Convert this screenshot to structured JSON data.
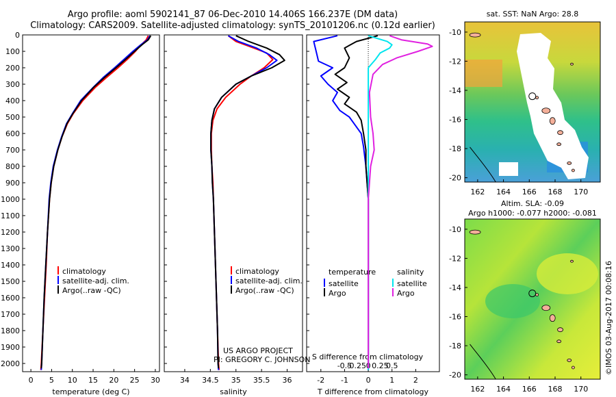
{
  "title": {
    "line1": "Argo profile: aoml 5902141_87 06-Dec-2010 14.406S 166.237E (DM data)",
    "line2": "Climatology: CARS2009. Satellite-adjusted climatology: synTS_20101206.nc (0.12d earlier)"
  },
  "stamp": "©IMOS 03-Aug-2017 00:08:16",
  "project": {
    "line1": "US ARGO PROJECT",
    "line2": "PI: GREGORY C. JOHNSON"
  },
  "colors": {
    "clim": "#ff0000",
    "sat": "#0000ff",
    "argo": "#000000",
    "sat_s": "#00e5ee",
    "argo_s": "#e020e0"
  },
  "chart_data": [
    {
      "type": "line",
      "title": "",
      "xlabel": "temperature (deg C)",
      "ylabel": "",
      "xlim": [
        -2,
        31
      ],
      "ylim": [
        2050,
        0
      ],
      "xticks": [
        0,
        5,
        10,
        15,
        20,
        25,
        30
      ],
      "yticks": [
        0,
        100,
        200,
        300,
        400,
        500,
        600,
        700,
        800,
        900,
        1000,
        1100,
        1200,
        1300,
        1400,
        1500,
        1600,
        1700,
        1800,
        1900,
        2000
      ],
      "legend": [
        "climatology",
        "satellite-adj. clim.",
        "Argo(..raw -QC)"
      ],
      "series": [
        {
          "name": "climatology",
          "color": "#ff0000",
          "points": [
            [
              28.3,
              5
            ],
            [
              27.8,
              30
            ],
            [
              26.6,
              60
            ],
            [
              25.2,
              100
            ],
            [
              23.2,
              150
            ],
            [
              21,
              200
            ],
            [
              18.2,
              260
            ],
            [
              15.5,
              320
            ],
            [
              12.5,
              400
            ],
            [
              10.2,
              480
            ],
            [
              8.8,
              540
            ],
            [
              7.5,
              620
            ],
            [
              6.5,
              700
            ],
            [
              5.5,
              800
            ],
            [
              4.9,
              900
            ],
            [
              4.5,
              1000
            ],
            [
              4,
              1200
            ],
            [
              3.7,
              1400
            ],
            [
              3.3,
              1600
            ],
            [
              2.9,
              1800
            ],
            [
              2.5,
              2000
            ],
            [
              2.4,
              2040
            ]
          ]
        },
        {
          "name": "satellite-adj. clim.",
          "color": "#0000ff",
          "points": [
            [
              28.7,
              5
            ],
            [
              28.1,
              30
            ],
            [
              26.5,
              60
            ],
            [
              24.6,
              100
            ],
            [
              22.4,
              150
            ],
            [
              20.2,
              200
            ],
            [
              17.4,
              260
            ],
            [
              15,
              320
            ],
            [
              12,
              400
            ],
            [
              10,
              480
            ],
            [
              8.6,
              540
            ],
            [
              7.4,
              620
            ],
            [
              6.4,
              700
            ],
            [
              5.4,
              800
            ],
            [
              4.8,
              900
            ],
            [
              4.4,
              1000
            ],
            [
              4,
              1200
            ],
            [
              3.6,
              1400
            ],
            [
              3.2,
              1600
            ],
            [
              2.9,
              1800
            ],
            [
              2.6,
              2000
            ],
            [
              2.5,
              2040
            ]
          ]
        },
        {
          "name": "Argo(..raw -QC)",
          "color": "#000000",
          "points": [
            [
              28.9,
              5
            ],
            [
              28.3,
              30
            ],
            [
              26.8,
              60
            ],
            [
              25,
              100
            ],
            [
              22.8,
              150
            ],
            [
              20.5,
              200
            ],
            [
              17.7,
              260
            ],
            [
              15.1,
              320
            ],
            [
              12.2,
              400
            ],
            [
              10.1,
              480
            ],
            [
              8.7,
              540
            ],
            [
              7.5,
              620
            ],
            [
              6.5,
              700
            ],
            [
              5.5,
              800
            ],
            [
              4.9,
              900
            ],
            [
              4.5,
              1000
            ],
            [
              4,
              1200
            ],
            [
              3.6,
              1400
            ],
            [
              3.2,
              1600
            ],
            [
              2.9,
              1800
            ],
            [
              2.6,
              2000
            ],
            [
              2.5,
              2030
            ]
          ]
        }
      ]
    },
    {
      "type": "line",
      "title": "",
      "xlabel": "salinity",
      "ylabel": "",
      "xlim": [
        33.6,
        36.3
      ],
      "ylim": [
        2050,
        0
      ],
      "xticks": [
        34,
        34.5,
        35,
        35.5,
        36
      ],
      "legend": [
        "climatology",
        "satellite-adj. clim.",
        "Argo(..raw -QC)"
      ],
      "series": [
        {
          "name": "climatology",
          "color": "#ff0000",
          "points": [
            [
              34.85,
              5
            ],
            [
              35,
              40
            ],
            [
              35.35,
              80
            ],
            [
              35.6,
              110
            ],
            [
              35.72,
              150
            ],
            [
              35.55,
              200
            ],
            [
              35.3,
              250
            ],
            [
              35.08,
              300
            ],
            [
              34.8,
              380
            ],
            [
              34.63,
              450
            ],
            [
              34.55,
              520
            ],
            [
              34.52,
              600
            ],
            [
              34.52,
              700
            ],
            [
              34.53,
              800
            ],
            [
              34.55,
              900
            ],
            [
              34.56,
              1000
            ],
            [
              34.58,
              1200
            ],
            [
              34.6,
              1400
            ],
            [
              34.62,
              1600
            ],
            [
              34.64,
              1800
            ],
            [
              34.66,
              2000
            ],
            [
              34.67,
              2040
            ]
          ]
        },
        {
          "name": "satellite-adj. clim.",
          "color": "#0000ff",
          "points": [
            [
              34.85,
              5
            ],
            [
              35.05,
              40
            ],
            [
              35.4,
              80
            ],
            [
              35.65,
              120
            ],
            [
              35.8,
              155
            ],
            [
              35.6,
              200
            ],
            [
              35.3,
              250
            ],
            [
              35.0,
              300
            ],
            [
              34.72,
              380
            ],
            [
              34.58,
              450
            ],
            [
              34.53,
              520
            ],
            [
              34.51,
              600
            ],
            [
              34.51,
              700
            ],
            [
              34.53,
              800
            ],
            [
              34.54,
              900
            ],
            [
              34.56,
              1000
            ],
            [
              34.58,
              1200
            ],
            [
              34.6,
              1400
            ],
            [
              34.62,
              1600
            ],
            [
              34.64,
              1800
            ],
            [
              34.65,
              2000
            ],
            [
              34.66,
              2040
            ]
          ]
        },
        {
          "name": "Argo(..raw -QC)",
          "color": "#000000",
          "points": [
            [
              35.0,
              5
            ],
            [
              35.25,
              40
            ],
            [
              35.6,
              80
            ],
            [
              35.85,
              120
            ],
            [
              35.95,
              155
            ],
            [
              35.7,
              200
            ],
            [
              35.3,
              250
            ],
            [
              35.0,
              300
            ],
            [
              34.72,
              380
            ],
            [
              34.58,
              450
            ],
            [
              34.53,
              520
            ],
            [
              34.51,
              600
            ],
            [
              34.51,
              700
            ],
            [
              34.53,
              800
            ],
            [
              34.54,
              900
            ],
            [
              34.56,
              1000
            ],
            [
              34.58,
              1200
            ],
            [
              34.6,
              1400
            ],
            [
              34.62,
              1600
            ],
            [
              34.64,
              1800
            ],
            [
              34.65,
              2000
            ],
            [
              34.66,
              2030
            ]
          ]
        }
      ]
    },
    {
      "type": "line",
      "title": "",
      "xlabel": "T difference from climatology",
      "xlabel2": "S difference from climatology",
      "xlim": [
        -2.6,
        3.0
      ],
      "ylim": [
        2050,
        0
      ],
      "xticks": [
        -2,
        -1,
        0,
        1,
        2
      ],
      "xticks2": {
        "values": [
          -1.0,
          -0.5,
          0,
          0.5,
          1.0
        ],
        "labels": [
          "-0.5",
          "-0.25",
          "0",
          "0.25",
          "0.5"
        ]
      },
      "legend_titles": [
        "temperature",
        "salinity"
      ],
      "legend": [
        "satellite",
        "Argo",
        "satellite",
        "Argo"
      ],
      "series": [
        {
          "name": "temperature satellite",
          "color": "#0000ff",
          "points": [
            [
              -1.3,
              5
            ],
            [
              -2.3,
              40
            ],
            [
              -2.2,
              100
            ],
            [
              -2.1,
              160
            ],
            [
              -1.5,
              200
            ],
            [
              -2.0,
              250
            ],
            [
              -1.7,
              300
            ],
            [
              -1.3,
              350
            ],
            [
              -1.5,
              400
            ],
            [
              -1.2,
              460
            ],
            [
              -0.8,
              500
            ],
            [
              -0.6,
              540
            ],
            [
              -0.3,
              600
            ],
            [
              -0.2,
              680
            ],
            [
              -0.1,
              800
            ],
            [
              0,
              1000
            ],
            [
              0,
              1500
            ],
            [
              0,
              2040
            ]
          ]
        },
        {
          "name": "temperature Argo",
          "color": "#000000",
          "points": [
            [
              0.4,
              5
            ],
            [
              -0.5,
              40
            ],
            [
              -1.0,
              80
            ],
            [
              -0.8,
              140
            ],
            [
              -1.0,
              200
            ],
            [
              -1.4,
              240
            ],
            [
              -0.9,
              290
            ],
            [
              -1.3,
              330
            ],
            [
              -0.8,
              380
            ],
            [
              -1.0,
              420
            ],
            [
              -0.5,
              470
            ],
            [
              -0.3,
              520
            ],
            [
              -0.2,
              600
            ],
            [
              -0.1,
              700
            ],
            [
              -0.1,
              800
            ],
            [
              0,
              1000
            ],
            [
              0,
              1500
            ],
            [
              0,
              2030
            ]
          ]
        },
        {
          "name": "salinity satellite",
          "color": "#00e5ee",
          "points": [
            [
              0,
              5
            ],
            [
              0.8,
              40
            ],
            [
              1.0,
              60
            ],
            [
              0.9,
              80
            ],
            [
              0.5,
              110
            ],
            [
              0.3,
              150
            ],
            [
              0,
              200
            ],
            [
              0,
              400
            ],
            [
              0,
              700
            ],
            [
              0,
              1000
            ],
            [
              0,
              1500
            ],
            [
              0,
              2040
            ]
          ]
        },
        {
          "name": "salinity Argo",
          "color": "#e020e0",
          "points": [
            [
              0.9,
              5
            ],
            [
              1.4,
              30
            ],
            [
              2.5,
              55
            ],
            [
              2.7,
              70
            ],
            [
              2.1,
              100
            ],
            [
              1.2,
              140
            ],
            [
              0.6,
              180
            ],
            [
              0.2,
              240
            ],
            [
              0.05,
              350
            ],
            [
              0.1,
              500
            ],
            [
              0.2,
              600
            ],
            [
              0.25,
              700
            ],
            [
              0.1,
              800
            ],
            [
              0,
              1000
            ],
            [
              0,
              1500
            ],
            [
              0,
              2030
            ]
          ]
        }
      ]
    },
    {
      "type": "heatmap",
      "title": "sat. SST: NaN  Argo: 28.8",
      "xlim": [
        161,
        171.5
      ],
      "ylim": [
        -20.3,
        -9.3
      ],
      "xticks": [
        162,
        164,
        166,
        168,
        170
      ],
      "yticks": [
        -10,
        -12,
        -14,
        -16,
        -18,
        -20
      ],
      "marker": {
        "lon": 166.237,
        "lat": -14.406
      }
    },
    {
      "type": "heatmap",
      "title": "Altim. SLA: -0.09",
      "title2": "Argo h1000: -0.077  h2000: -0.081",
      "xlim": [
        161,
        171.5
      ],
      "ylim": [
        -20.3,
        -9.3
      ],
      "xticks": [
        162,
        164,
        166,
        168,
        170
      ],
      "yticks": [
        -10,
        -12,
        -14,
        -16,
        -18,
        -20
      ],
      "marker": {
        "lon": 166.237,
        "lat": -14.406
      }
    }
  ]
}
